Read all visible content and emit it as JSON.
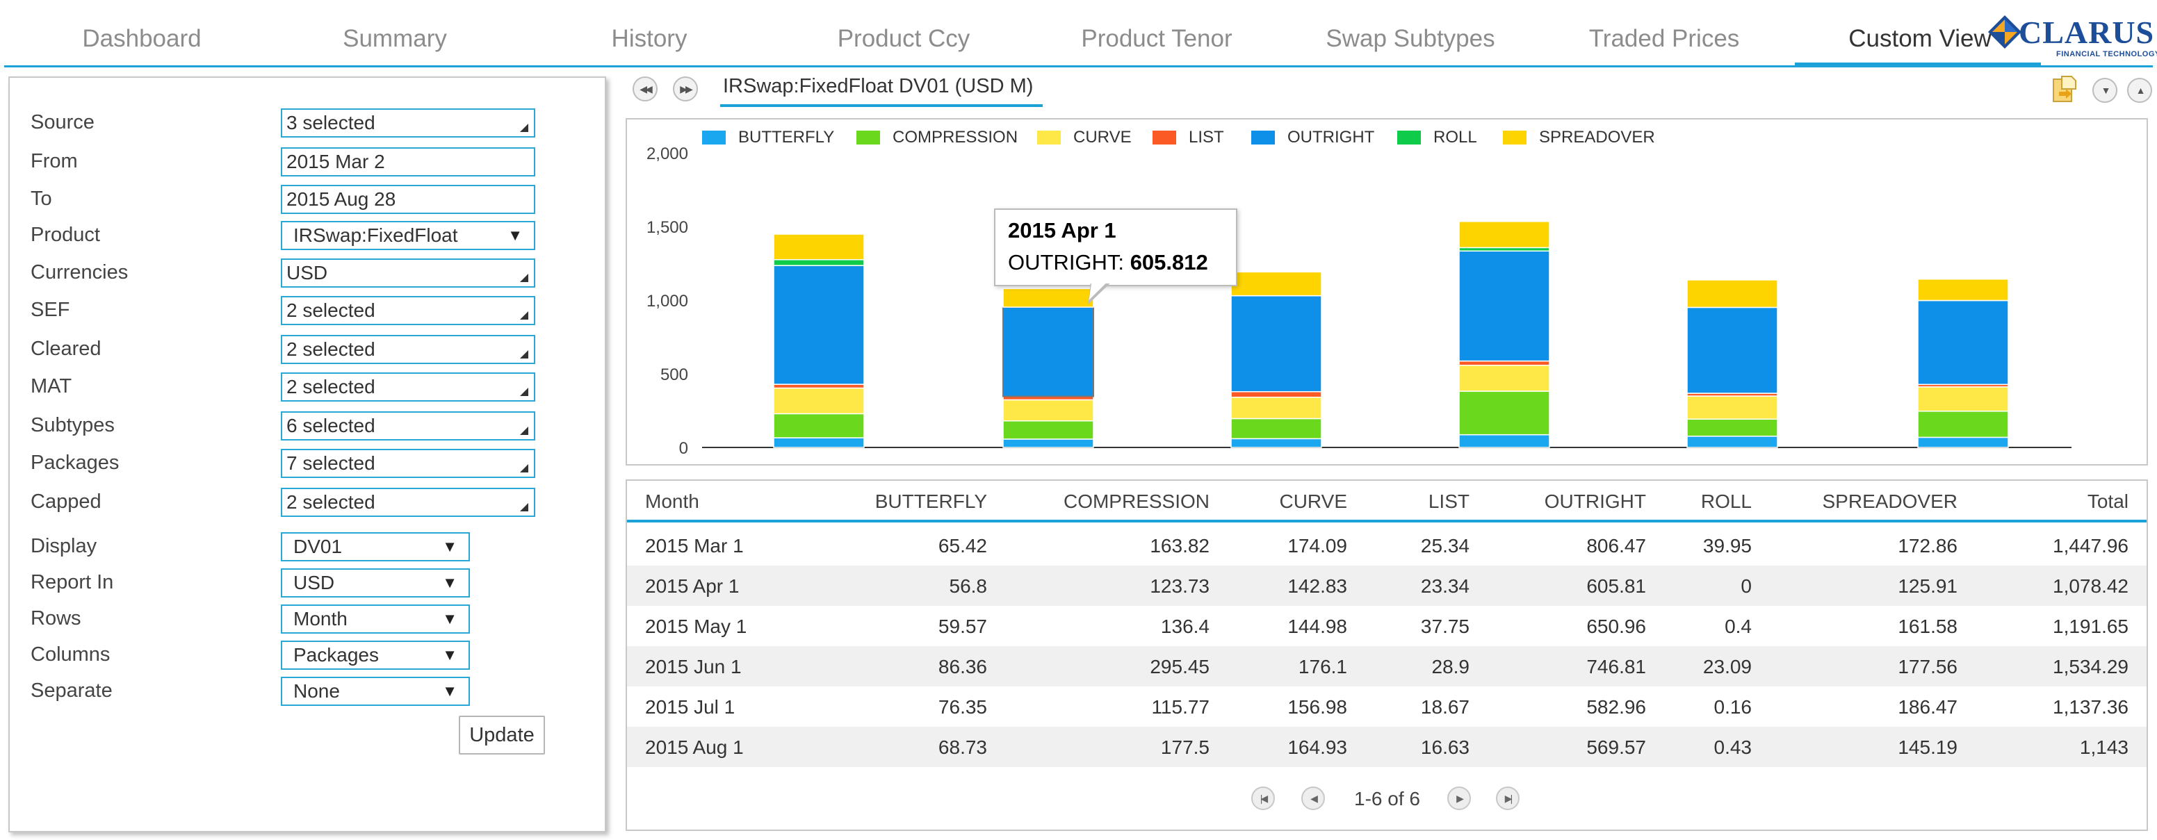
{
  "nav": {
    "tabs": [
      {
        "label": "Dashboard",
        "active": false
      },
      {
        "label": "Summary",
        "active": false
      },
      {
        "label": "History",
        "active": false
      },
      {
        "label": "Product Ccy",
        "active": false
      },
      {
        "label": "Product Tenor",
        "active": false
      },
      {
        "label": "Swap Subtypes",
        "active": false
      },
      {
        "label": "Traded Prices",
        "active": false
      },
      {
        "label": "Custom View",
        "active": true
      }
    ],
    "logo": {
      "name": "CLARUS",
      "subtitle": "FINANCIAL TECHNOLOGY"
    }
  },
  "filters": {
    "source": {
      "label": "Source",
      "value": "3 selected"
    },
    "from": {
      "label": "From",
      "value": "2015 Mar 2"
    },
    "to": {
      "label": "To",
      "value": "2015 Aug 28"
    },
    "product": {
      "label": "Product",
      "value": "IRSwap:FixedFloat"
    },
    "currencies": {
      "label": "Currencies",
      "value": "USD"
    },
    "sef": {
      "label": "SEF",
      "value": "2 selected"
    },
    "cleared": {
      "label": "Cleared",
      "value": "2 selected"
    },
    "mat": {
      "label": "MAT",
      "value": "2 selected"
    },
    "subtypes": {
      "label": "Subtypes",
      "value": "6 selected"
    },
    "packages": {
      "label": "Packages",
      "value": "7 selected"
    },
    "capped": {
      "label": "Capped",
      "value": "2 selected"
    },
    "display": {
      "label": "Display",
      "value": "DV01"
    },
    "report_in": {
      "label": "Report In",
      "value": "USD"
    },
    "rows": {
      "label": "Rows",
      "value": "Month"
    },
    "columns": {
      "label": "Columns",
      "value": "Packages"
    },
    "separate": {
      "label": "Separate",
      "value": "None"
    },
    "update_label": "Update"
  },
  "chart_header": {
    "title": "IRSwap:FixedFloat DV01 (USD M)"
  },
  "colors": {
    "BUTTERFLY": "#1ba6f0",
    "COMPRESSION": "#6ad91d",
    "CURVE": "#fde847",
    "LIST": "#fb5a24",
    "OUTRIGHT": "#0e8fe8",
    "ROLL": "#0ecb4a",
    "SPREADOVER": "#fed400",
    "accent": "#1da2d8"
  },
  "chart_data": {
    "type": "bar",
    "stacked": true,
    "categories": [
      "2015 Mar 1",
      "2015 Apr 1",
      "2015 May 1",
      "2015 Jun 1",
      "2015 Jul 1",
      "2015 Aug 1"
    ],
    "series": [
      {
        "name": "BUTTERFLY",
        "values": [
          65.42,
          56.8,
          59.57,
          86.36,
          76.35,
          68.73
        ]
      },
      {
        "name": "COMPRESSION",
        "values": [
          163.82,
          123.73,
          136.4,
          295.45,
          115.77,
          177.5
        ]
      },
      {
        "name": "CURVE",
        "values": [
          174.09,
          142.83,
          144.98,
          176.1,
          156.98,
          164.93
        ]
      },
      {
        "name": "LIST",
        "values": [
          25.34,
          23.34,
          37.75,
          28.9,
          18.67,
          16.63
        ]
      },
      {
        "name": "OUTRIGHT",
        "values": [
          806.47,
          605.81,
          650.96,
          746.81,
          582.96,
          569.57
        ]
      },
      {
        "name": "ROLL",
        "values": [
          39.95,
          0,
          0.4,
          23.09,
          0.16,
          0.43
        ]
      },
      {
        "name": "SPREADOVER",
        "values": [
          172.86,
          125.91,
          161.58,
          177.56,
          186.47,
          145.19
        ]
      }
    ],
    "yticks": [
      "0",
      "500",
      "1,000",
      "1,500",
      "2,000"
    ],
    "ylim": [
      0,
      2000
    ],
    "legend": "top-left",
    "tooltip": {
      "date": "2015 Apr 1",
      "series": "OUTRIGHT:",
      "value": "605.812"
    }
  },
  "table": {
    "columns": [
      "Month",
      "BUTTERFLY",
      "COMPRESSION",
      "CURVE",
      "LIST",
      "OUTRIGHT",
      "ROLL",
      "SPREADOVER",
      "Total"
    ],
    "rows": [
      [
        "2015 Mar 1",
        "65.42",
        "163.82",
        "174.09",
        "25.34",
        "806.47",
        "39.95",
        "172.86",
        "1,447.96"
      ],
      [
        "2015 Apr 1",
        "56.8",
        "123.73",
        "142.83",
        "23.34",
        "605.81",
        "0",
        "125.91",
        "1,078.42"
      ],
      [
        "2015 May 1",
        "59.57",
        "136.4",
        "144.98",
        "37.75",
        "650.96",
        "0.4",
        "161.58",
        "1,191.65"
      ],
      [
        "2015 Jun 1",
        "86.36",
        "295.45",
        "176.1",
        "28.9",
        "746.81",
        "23.09",
        "177.56",
        "1,534.29"
      ],
      [
        "2015 Jul 1",
        "76.35",
        "115.77",
        "156.98",
        "18.67",
        "582.96",
        "0.16",
        "186.47",
        "1,137.36"
      ],
      [
        "2015 Aug 1",
        "68.73",
        "177.5",
        "164.93",
        "16.63",
        "569.57",
        "0.43",
        "145.19",
        "1,143"
      ]
    ],
    "pager": "1-6 of 6"
  }
}
